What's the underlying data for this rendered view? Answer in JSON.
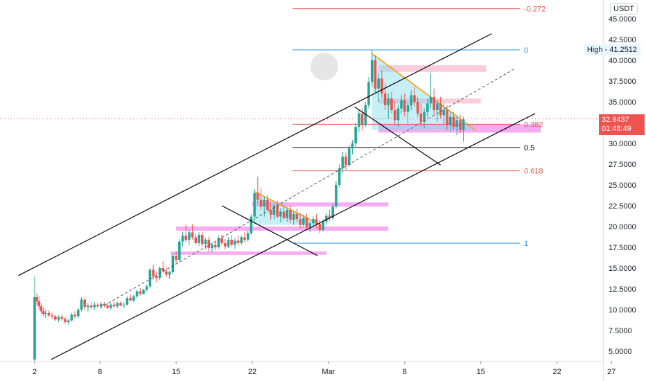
{
  "currency": "USDT",
  "high_badge": {
    "label": "High",
    "value": "41.2512"
  },
  "last_price": {
    "value": "32.9437",
    "countdown": "01:48:49"
  },
  "y_ticks": [
    "45.0000",
    "42.5000",
    "40.0000",
    "37.5000",
    "35.0000",
    "32.5000",
    "30.0000",
    "27.5000",
    "25.0000",
    "22.5000",
    "20.0000",
    "17.5000",
    "15.0000",
    "12.5000",
    "10.0000",
    "7.5000",
    "5.0000"
  ],
  "x_ticks": [
    {
      "label": "2",
      "day": 0
    },
    {
      "label": "8",
      "day": 6
    },
    {
      "label": "15",
      "day": 13
    },
    {
      "label": "22",
      "day": 20
    },
    {
      "label": "Mar",
      "day": 27
    },
    {
      "label": "8",
      "day": 34
    },
    {
      "label": "15",
      "day": 41
    },
    {
      "label": "22",
      "day": 48
    },
    {
      "label": "27",
      "day": 53
    }
  ],
  "fib_levels": [
    {
      "label": "-0.272",
      "price": 46.2,
      "color": "#ef5350"
    },
    {
      "label": "0",
      "price": 41.25,
      "color": "#2196f3"
    },
    {
      "label": "0.382",
      "price": 32.3,
      "color": "#ef5350"
    },
    {
      "label": "0.5",
      "price": 29.5,
      "color": "#000000"
    },
    {
      "label": "0.618",
      "price": 26.7,
      "color": "#ef5350"
    },
    {
      "label": "1",
      "price": 18.0,
      "color": "#2196f3"
    }
  ],
  "colors": {
    "up": "#26a69a",
    "down": "#ef5350",
    "zone": "#f8bbd0",
    "zone_magenta": "#f48fec",
    "triangle_fill": "#80deea",
    "triangle_edge": "#ff9800",
    "channel": "#000000"
  },
  "chart_data": {
    "type": "candlestick",
    "x_unit": "days since Feb 2",
    "y_range": [
      3.5,
      46.5
    ],
    "x_range": [
      -3,
      55
    ],
    "current_price": 32.9437,
    "high": 41.2512,
    "candles": [
      [
        0,
        4.0,
        14.0,
        3.5,
        11.5
      ],
      [
        0.2,
        11.5,
        12.0,
        10.5,
        11.0
      ],
      [
        0.4,
        11.0,
        11.6,
        10.0,
        10.4
      ],
      [
        0.6,
        10.4,
        10.8,
        9.5,
        9.8
      ],
      [
        0.8,
        9.8,
        10.2,
        9.2,
        9.5
      ],
      [
        1.0,
        9.5,
        10.0,
        9.0,
        9.6
      ],
      [
        1.3,
        9.6,
        9.9,
        9.1,
        9.3
      ],
      [
        1.6,
        9.3,
        9.6,
        8.9,
        9.2
      ],
      [
        1.9,
        9.2,
        9.4,
        8.6,
        8.8
      ],
      [
        2.2,
        8.8,
        9.3,
        8.5,
        9.1
      ],
      [
        2.5,
        9.1,
        9.4,
        8.7,
        8.9
      ],
      [
        2.8,
        8.9,
        9.1,
        8.3,
        8.5
      ],
      [
        3.1,
        8.5,
        8.9,
        8.2,
        8.7
      ],
      [
        3.4,
        8.7,
        9.6,
        8.6,
        9.4
      ],
      [
        3.7,
        9.4,
        9.8,
        8.9,
        9.2
      ],
      [
        4.0,
        9.2,
        10.2,
        9.0,
        10.0
      ],
      [
        4.3,
        10.0,
        11.5,
        9.8,
        11.2
      ],
      [
        4.6,
        11.2,
        11.4,
        10.0,
        10.3
      ],
      [
        4.9,
        10.3,
        10.8,
        9.8,
        10.5
      ],
      [
        5.2,
        10.5,
        10.9,
        10.1,
        10.3
      ],
      [
        5.5,
        10.3,
        10.9,
        10.0,
        10.6
      ],
      [
        5.8,
        10.6,
        10.8,
        10.2,
        10.4
      ],
      [
        6.1,
        10.4,
        10.9,
        10.2,
        10.7
      ],
      [
        6.4,
        10.7,
        10.9,
        10.3,
        10.5
      ],
      [
        6.7,
        10.5,
        10.8,
        10.1,
        10.2
      ],
      [
        7.0,
        10.2,
        10.8,
        10.0,
        10.6
      ],
      [
        7.3,
        10.6,
        10.9,
        10.3,
        10.4
      ],
      [
        7.6,
        10.4,
        10.9,
        10.2,
        10.8
      ],
      [
        7.9,
        10.8,
        11.0,
        10.4,
        10.5
      ],
      [
        8.2,
        10.5,
        10.9,
        10.2,
        10.6
      ],
      [
        8.5,
        10.6,
        11.6,
        10.5,
        11.4
      ],
      [
        8.8,
        11.4,
        11.8,
        11.0,
        11.1
      ],
      [
        9.1,
        11.1,
        11.8,
        10.9,
        11.6
      ],
      [
        9.4,
        11.6,
        12.4,
        11.4,
        12.2
      ],
      [
        9.7,
        12.2,
        12.6,
        11.7,
        11.9
      ],
      [
        10.0,
        11.9,
        12.5,
        11.8,
        12.4
      ],
      [
        10.3,
        12.4,
        13.0,
        12.2,
        12.8
      ],
      [
        10.6,
        12.8,
        15.0,
        12.6,
        14.8
      ],
      [
        10.9,
        14.8,
        15.4,
        13.6,
        14.0
      ],
      [
        11.2,
        14.0,
        14.6,
        13.3,
        13.8
      ],
      [
        11.5,
        13.8,
        15.2,
        13.6,
        15.0
      ],
      [
        11.8,
        15.0,
        15.8,
        14.4,
        14.6
      ],
      [
        12.1,
        14.6,
        15.2,
        13.9,
        14.2
      ],
      [
        12.4,
        14.2,
        14.7,
        13.7,
        14.5
      ],
      [
        12.7,
        14.5,
        16.8,
        14.3,
        16.5
      ],
      [
        13.0,
        16.5,
        17.0,
        15.6,
        16.0
      ],
      [
        13.3,
        16.0,
        18.5,
        15.8,
        18.2
      ],
      [
        13.6,
        18.2,
        19.4,
        17.6,
        18.9
      ],
      [
        13.9,
        18.9,
        20.2,
        18.1,
        18.4
      ],
      [
        14.2,
        18.4,
        19.6,
        17.8,
        19.3
      ],
      [
        14.5,
        19.3,
        20.3,
        18.4,
        18.7
      ],
      [
        14.8,
        18.7,
        19.2,
        17.8,
        18.0
      ],
      [
        15.1,
        18.0,
        19.3,
        17.7,
        19.0
      ],
      [
        15.4,
        19.0,
        19.4,
        17.6,
        17.9
      ],
      [
        15.7,
        17.9,
        18.6,
        17.3,
        18.4
      ],
      [
        16.0,
        18.4,
        18.8,
        17.0,
        17.4
      ],
      [
        16.3,
        17.4,
        18.1,
        16.9,
        17.8
      ],
      [
        16.6,
        17.8,
        18.3,
        17.2,
        17.5
      ],
      [
        16.9,
        17.5,
        18.9,
        17.3,
        18.6
      ],
      [
        17.2,
        18.6,
        19.0,
        17.8,
        18.0
      ],
      [
        17.5,
        18.0,
        18.5,
        17.2,
        17.6
      ],
      [
        17.8,
        17.6,
        18.7,
        17.4,
        18.4
      ],
      [
        18.1,
        18.4,
        19.0,
        17.6,
        17.8
      ],
      [
        18.4,
        17.8,
        18.6,
        17.3,
        18.3
      ],
      [
        18.7,
        18.3,
        18.9,
        17.7,
        18.0
      ],
      [
        19.0,
        18.0,
        18.9,
        17.8,
        18.7
      ],
      [
        19.3,
        18.7,
        19.3,
        18.1,
        18.4
      ],
      [
        19.6,
        18.4,
        19.5,
        18.2,
        19.2
      ],
      [
        19.9,
        19.2,
        21.5,
        19.0,
        21.2
      ],
      [
        20.2,
        21.2,
        24.5,
        20.5,
        24.0
      ],
      [
        20.5,
        24.0,
        26.0,
        22.8,
        23.2
      ],
      [
        20.8,
        23.2,
        24.6,
        22.0,
        22.4
      ],
      [
        21.1,
        22.4,
        23.6,
        21.2,
        23.2
      ],
      [
        21.4,
        23.2,
        23.8,
        21.8,
        22.0
      ],
      [
        21.7,
        22.0,
        23.0,
        20.8,
        21.4
      ],
      [
        22.0,
        21.4,
        22.8,
        20.9,
        22.5
      ],
      [
        22.3,
        22.5,
        23.1,
        21.0,
        21.2
      ],
      [
        22.6,
        21.2,
        22.2,
        20.5,
        21.8
      ],
      [
        22.9,
        21.8,
        22.6,
        20.8,
        21.0
      ],
      [
        23.2,
        21.0,
        22.3,
        20.6,
        22.0
      ],
      [
        23.5,
        22.0,
        22.6,
        20.4,
        20.8
      ],
      [
        23.8,
        20.8,
        21.8,
        20.2,
        21.5
      ],
      [
        24.1,
        21.5,
        22.2,
        20.5,
        20.9
      ],
      [
        24.4,
        20.9,
        21.6,
        19.8,
        20.2
      ],
      [
        24.7,
        20.2,
        21.4,
        19.9,
        21.0
      ],
      [
        25.0,
        21.0,
        21.5,
        19.6,
        19.9
      ],
      [
        25.3,
        19.9,
        20.6,
        19.3,
        20.4
      ],
      [
        25.6,
        20.4,
        21.2,
        19.9,
        20.9
      ],
      [
        25.9,
        20.9,
        21.5,
        19.8,
        20.3
      ],
      [
        26.2,
        20.3,
        20.8,
        19.2,
        19.6
      ],
      [
        26.5,
        19.6,
        20.9,
        19.4,
        20.6
      ],
      [
        26.8,
        20.6,
        21.6,
        20.2,
        21.3
      ],
      [
        27.1,
        21.3,
        22.0,
        20.7,
        21.0
      ],
      [
        27.4,
        21.0,
        22.8,
        20.8,
        22.4
      ],
      [
        27.7,
        22.4,
        25.5,
        22.2,
        25.0
      ],
      [
        28.0,
        25.0,
        27.5,
        24.7,
        27.0
      ],
      [
        28.3,
        27.0,
        29.0,
        26.4,
        28.4
      ],
      [
        28.6,
        28.4,
        28.9,
        26.8,
        27.4
      ],
      [
        28.9,
        27.4,
        29.8,
        27.2,
        29.4
      ],
      [
        29.2,
        29.4,
        30.4,
        28.7,
        30.0
      ],
      [
        29.5,
        30.0,
        32.5,
        29.6,
        32.0
      ],
      [
        29.8,
        32.0,
        34.0,
        31.4,
        33.6
      ],
      [
        30.1,
        33.6,
        34.2,
        31.6,
        32.2
      ],
      [
        30.4,
        32.2,
        35.0,
        32.0,
        34.6
      ],
      [
        30.7,
        34.6,
        38.0,
        34.2,
        37.4
      ],
      [
        31.0,
        37.4,
        41.25,
        36.8,
        40.0
      ],
      [
        31.3,
        40.0,
        40.6,
        36.0,
        36.6
      ],
      [
        31.6,
        36.6,
        38.4,
        35.0,
        37.8
      ],
      [
        31.9,
        37.8,
        38.8,
        35.5,
        36.0
      ],
      [
        32.2,
        36.0,
        37.2,
        34.0,
        34.6
      ],
      [
        32.5,
        34.6,
        36.0,
        33.0,
        35.4
      ],
      [
        32.8,
        35.4,
        36.2,
        33.6,
        34.0
      ],
      [
        33.1,
        34.0,
        35.2,
        32.2,
        32.8
      ],
      [
        33.4,
        32.8,
        34.6,
        32.0,
        34.2
      ],
      [
        33.7,
        34.2,
        35.8,
        33.6,
        35.2
      ],
      [
        34.0,
        35.2,
        36.0,
        33.2,
        33.8
      ],
      [
        34.3,
        33.8,
        35.0,
        32.4,
        34.6
      ],
      [
        34.6,
        34.6,
        36.4,
        34.0,
        35.8
      ],
      [
        34.9,
        35.8,
        36.8,
        34.4,
        35.0
      ],
      [
        35.2,
        35.0,
        35.6,
        33.2,
        33.6
      ],
      [
        35.5,
        33.6,
        34.8,
        32.0,
        32.6
      ],
      [
        35.8,
        32.6,
        34.2,
        31.8,
        33.8
      ],
      [
        36.1,
        33.8,
        35.4,
        33.2,
        34.8
      ],
      [
        36.4,
        34.8,
        38.5,
        34.2,
        35.6
      ],
      [
        36.7,
        35.6,
        36.6,
        33.4,
        34.0
      ],
      [
        37.0,
        34.0,
        35.2,
        32.6,
        34.8
      ],
      [
        37.3,
        34.8,
        35.6,
        33.0,
        33.4
      ],
      [
        37.6,
        33.4,
        34.8,
        32.2,
        34.0
      ],
      [
        37.9,
        34.0,
        34.6,
        31.6,
        32.2
      ],
      [
        38.2,
        32.2,
        33.8,
        31.4,
        33.2
      ],
      [
        38.5,
        33.2,
        33.8,
        31.6,
        32.0
      ],
      [
        38.8,
        32.0,
        33.4,
        31.0,
        32.8
      ],
      [
        39.1,
        32.8,
        33.5,
        31.2,
        31.6
      ],
      [
        39.4,
        31.6,
        33.2,
        30.2,
        32.9
      ]
    ]
  }
}
